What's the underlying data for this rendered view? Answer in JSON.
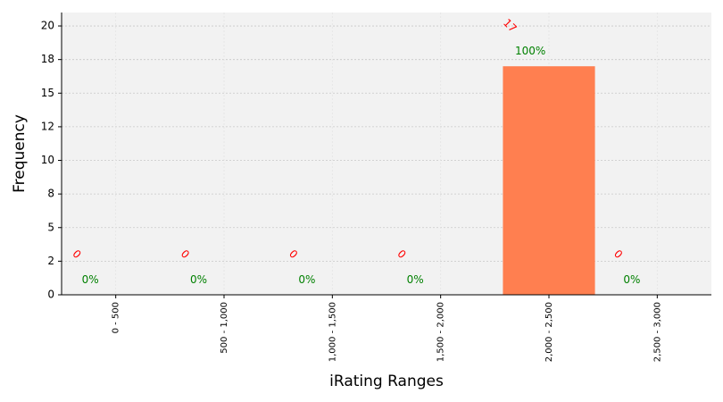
{
  "chart_data": {
    "type": "bar",
    "x_label": "iRating Ranges",
    "y_label": "Frequency",
    "categories": [
      "0 - 500",
      "500 - 1,000",
      "1,000 - 1,500",
      "1,500 - 2,000",
      "2,000 - 2,500",
      "2,500 - 3,000"
    ],
    "values": [
      0,
      0,
      0,
      0,
      17,
      0
    ],
    "color": "#ff7f50",
    "count_label_color": "red",
    "percentages": {
      "values": [
        0,
        0,
        0,
        0,
        100,
        0
      ],
      "value_labels": [
        "0%",
        "0%",
        "0%",
        "0%",
        "100%",
        "0%"
      ],
      "color": "green"
    },
    "ylim": [
      0,
      21
    ],
    "yticks": [
      0,
      {
        "value": 2.5,
        "label": "2"
      },
      5,
      {
        "value": 7.5,
        "label": "8"
      },
      10,
      {
        "value": 12.5,
        "label": "12"
      },
      15,
      {
        "value": 17.5,
        "label": "18"
      },
      20
    ],
    "grid": true
  }
}
